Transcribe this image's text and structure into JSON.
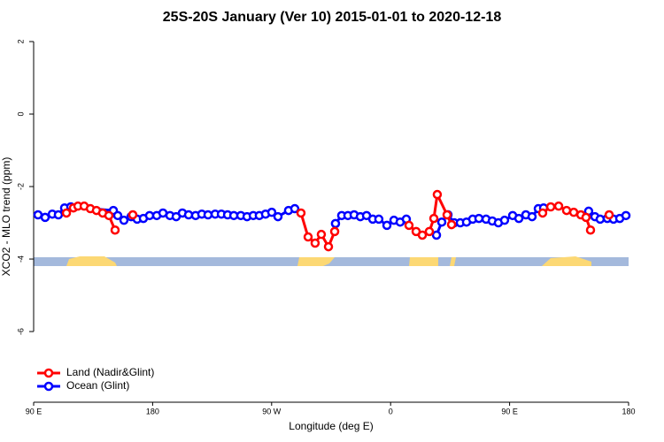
{
  "chart_data": {
    "type": "line",
    "title": "25S-20S January (Ver 10)   2015-01-01 to 2020-12-18",
    "x_label": "Longitude (deg E)",
    "y_label": "XCO2 - MLO trend (ppm)",
    "xlim": [
      90,
      540
    ],
    "xticks": [
      {
        "value": 90,
        "label": "90 E"
      },
      {
        "value": 180,
        "label": "180"
      },
      {
        "value": 270,
        "label": "90 W"
      },
      {
        "value": 360,
        "label": "0"
      },
      {
        "value": 450,
        "label": "90 E"
      },
      {
        "value": 540,
        "label": "180"
      }
    ],
    "ylim": [
      -7.95,
      2.32
    ],
    "yticks": [
      -6,
      -4,
      -2,
      0,
      2
    ],
    "legend": "bottom-left",
    "series": [
      {
        "name": "Ocean (Glint)",
        "color": "#0000ff",
        "x": [
          93.3,
          98.7,
          104.1,
          108.7,
          113.4,
          118.1,
          150.3,
          153.6,
          158.3,
          163.7,
          168.3,
          173.0,
          177.7,
          183.1,
          187.8,
          193.1,
          197.8,
          202.5,
          207.2,
          212.5,
          217.2,
          221.9,
          227.3,
          232.0,
          236.7,
          241.4,
          246.7,
          251.4,
          256.1,
          260.7,
          265.4,
          270.1,
          274.8,
          282.8,
          287.5,
          null,
          318.3,
          323.0,
          327.7,
          332.4,
          337.1,
          341.8,
          346.5,
          351.1,
          357.2,
          362.5,
          367.2,
          371.9,
          null,
          394.7,
          398.7,
          403.4,
          408.1,
          412.7,
          417.4,
          422.1,
          426.8,
          432.2,
          436.9,
          441.5,
          446.2,
          452.3,
          457.0,
          462.3,
          467.0,
          471.7,
          475.7,
          null,
          509.8,
          514.5,
          518.5,
          523.9,
          528.6,
          533.3,
          538.0
        ],
        "values": [
          -2.78,
          -2.85,
          -2.76,
          -2.78,
          -2.59,
          -2.56,
          -2.66,
          -2.8,
          -2.93,
          -2.83,
          -2.9,
          -2.88,
          -2.8,
          -2.8,
          -2.73,
          -2.8,
          -2.83,
          -2.73,
          -2.78,
          -2.8,
          -2.76,
          -2.78,
          -2.76,
          -2.76,
          -2.78,
          -2.8,
          -2.8,
          -2.83,
          -2.8,
          -2.8,
          -2.76,
          -2.71,
          -2.83,
          -2.66,
          -2.61,
          null,
          -3.02,
          -2.8,
          -2.8,
          -2.78,
          -2.83,
          -2.8,
          -2.9,
          -2.9,
          -3.07,
          -2.93,
          -2.98,
          -2.9,
          null,
          -3.34,
          -2.98,
          -2.78,
          -3.0,
          -3.0,
          -2.98,
          -2.9,
          -2.88,
          -2.9,
          -2.95,
          -3.0,
          -2.93,
          -2.8,
          -2.88,
          -2.78,
          -2.83,
          -2.61,
          -2.59,
          null,
          -2.68,
          -2.83,
          -2.9,
          -2.88,
          -2.9,
          -2.88,
          -2.8
        ]
      },
      {
        "name": "Land (Nadir&Glint)",
        "color": "#ff0000",
        "x": [
          114.8,
          120.1,
          123.5,
          128.2,
          132.9,
          137.5,
          142.2,
          146.9,
          151.6,
          null,
          165.0,
          null,
          292.2,
          297.6,
          302.9,
          307.6,
          313.0,
          317.7,
          null,
          373.9,
          379.3,
          384.0,
          389.3,
          392.7,
          395.3,
          402.7,
          406.1,
          null,
          475.0,
          481.1,
          487.1,
          493.1,
          498.5,
          503.9,
          507.8,
          511.2,
          null,
          525.3
        ],
        "values": [
          -2.73,
          -2.59,
          -2.54,
          -2.54,
          -2.61,
          -2.66,
          -2.73,
          -2.8,
          -3.2,
          null,
          -2.78,
          null,
          -2.73,
          -3.39,
          -3.56,
          -3.32,
          -3.66,
          -3.24,
          null,
          -3.07,
          -3.24,
          -3.34,
          -3.24,
          -2.88,
          -2.22,
          -2.78,
          -3.05,
          null,
          -2.73,
          -2.56,
          -2.54,
          -2.66,
          -2.71,
          -2.78,
          -2.85,
          -3.2,
          null,
          -2.78
        ]
      }
    ]
  }
}
